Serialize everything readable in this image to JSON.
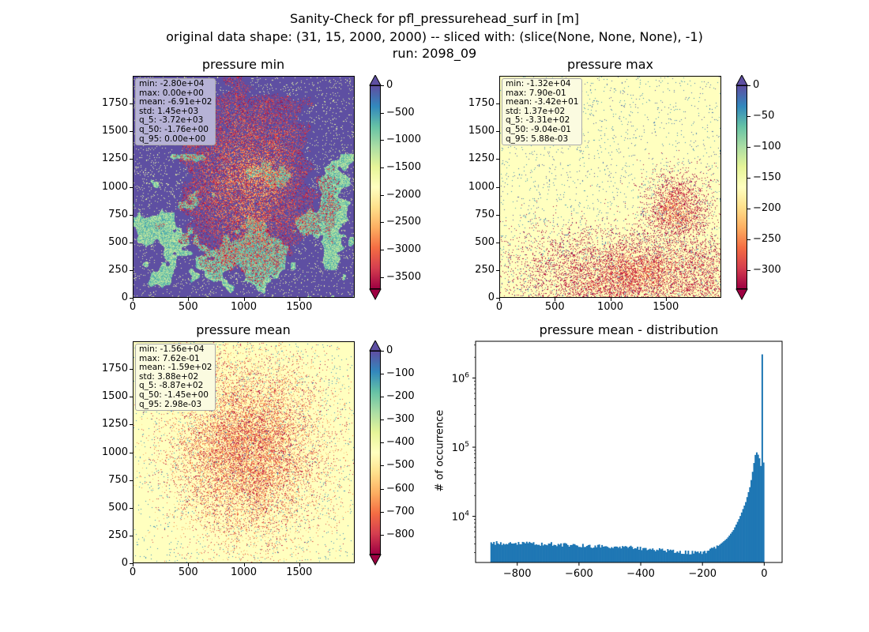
{
  "suptitle": {
    "line1": "Sanity-Check for pfl_pressurehead_surf in [m]",
    "line2": "original data shape: (31, 15, 2000, 2000) -- sliced with: (slice(None, None, None), -1)",
    "line3": "run: 2098_09"
  },
  "colormap": "Spectral",
  "panels": [
    {
      "title": "pressure min",
      "stats": [
        "min: -2.80e+04",
        "max: 0.00e+00",
        "mean: -6.91e+02",
        "std: 1.45e+03",
        "q_5: -3.72e+03",
        "q_50: -1.76e+00",
        "q_95: 0.00e+00"
      ],
      "stats_bg": "#b6b2d6",
      "x_ticks": [
        "0",
        "500",
        "1000",
        "1500"
      ],
      "y_ticks": [
        "0",
        "250",
        "500",
        "750",
        "1000",
        "1250",
        "1500",
        "1750"
      ],
      "colorbar": {
        "ticks": [
          "0",
          "−500",
          "−1000",
          "−1500",
          "−2000",
          "−2500",
          "−3000",
          "−3500"
        ],
        "vmin": -3720,
        "vmax": 0,
        "extend": "both"
      }
    },
    {
      "title": "pressure max",
      "stats": [
        "min: -1.32e+04",
        "max: 7.90e-01",
        "mean: -3.42e+01",
        "std: 1.37e+02",
        "q_5: -3.31e+02",
        "q_50: -9.04e-01",
        "q_95: 5.88e-03"
      ],
      "stats_bg": "#fbfbe0",
      "x_ticks": [
        "0",
        "500",
        "1000",
        "1500"
      ],
      "y_ticks": [
        "0",
        "250",
        "500",
        "750",
        "1000",
        "1250",
        "1500",
        "1750"
      ],
      "colorbar": {
        "ticks": [
          "0",
          "−50",
          "−100",
          "−150",
          "−200",
          "−250",
          "−300"
        ],
        "vmin": -331,
        "vmax": 0,
        "extend": "both"
      }
    },
    {
      "title": "pressure mean",
      "stats": [
        "min: -1.56e+04",
        "max: 7.62e-01",
        "mean: -1.59e+02",
        "std: 3.88e+02",
        "q_5: -8.87e+02",
        "q_50: -1.45e+00",
        "q_95: 2.98e-03"
      ],
      "stats_bg": "#fbfbe0",
      "x_ticks": [
        "0",
        "500",
        "1000",
        "1500"
      ],
      "y_ticks": [
        "0",
        "250",
        "500",
        "750",
        "1000",
        "1250",
        "1500",
        "1750"
      ],
      "colorbar": {
        "ticks": [
          "0",
          "−100",
          "−200",
          "−300",
          "−400",
          "−500",
          "−600",
          "−700",
          "−800"
        ],
        "vmin": -887,
        "vmax": 0,
        "extend": "both"
      }
    }
  ],
  "chart_data": {
    "type": "bar",
    "title": "pressure mean - distribution",
    "xlabel": "",
    "ylabel": "# of occurrence",
    "yscale": "log",
    "xlim": [
      -935,
      58
    ],
    "ylim": [
      2150,
      3400000
    ],
    "x_ticks": [
      "−800",
      "−600",
      "−400",
      "−200",
      "0"
    ],
    "x_tick_values": [
      -800,
      -600,
      -400,
      -200,
      0
    ],
    "y_ticks": [
      {
        "base": "10",
        "exp": "4",
        "value": 10000
      },
      {
        "base": "10",
        "exp": "5",
        "value": 100000
      },
      {
        "base": "10",
        "exp": "6",
        "value": 1000000
      }
    ],
    "bar_color": "#1f77b4",
    "bin_range": [
      -887,
      0
    ],
    "bins": 200,
    "anchors": [
      [
        -887,
        4100
      ],
      [
        -800,
        4050
      ],
      [
        -700,
        4000
      ],
      [
        -600,
        3750
      ],
      [
        -500,
        3700
      ],
      [
        -400,
        3450
      ],
      [
        -300,
        3200
      ],
      [
        -250,
        3000
      ],
      [
        -200,
        3000
      ],
      [
        -170,
        3300
      ],
      [
        -150,
        3700
      ],
      [
        -120,
        4800
      ],
      [
        -100,
        6300
      ],
      [
        -80,
        9500
      ],
      [
        -60,
        16000
      ],
      [
        -45,
        28000
      ],
      [
        -35,
        52000
      ],
      [
        -30,
        75000
      ],
      [
        -25,
        85000
      ],
      [
        -20,
        78000
      ],
      [
        -15,
        68000
      ],
      [
        -10,
        50000
      ],
      [
        -6,
        58000
      ],
      [
        -4,
        30000
      ],
      [
        -2,
        2200000
      ],
      [
        0,
        60000
      ]
    ]
  }
}
